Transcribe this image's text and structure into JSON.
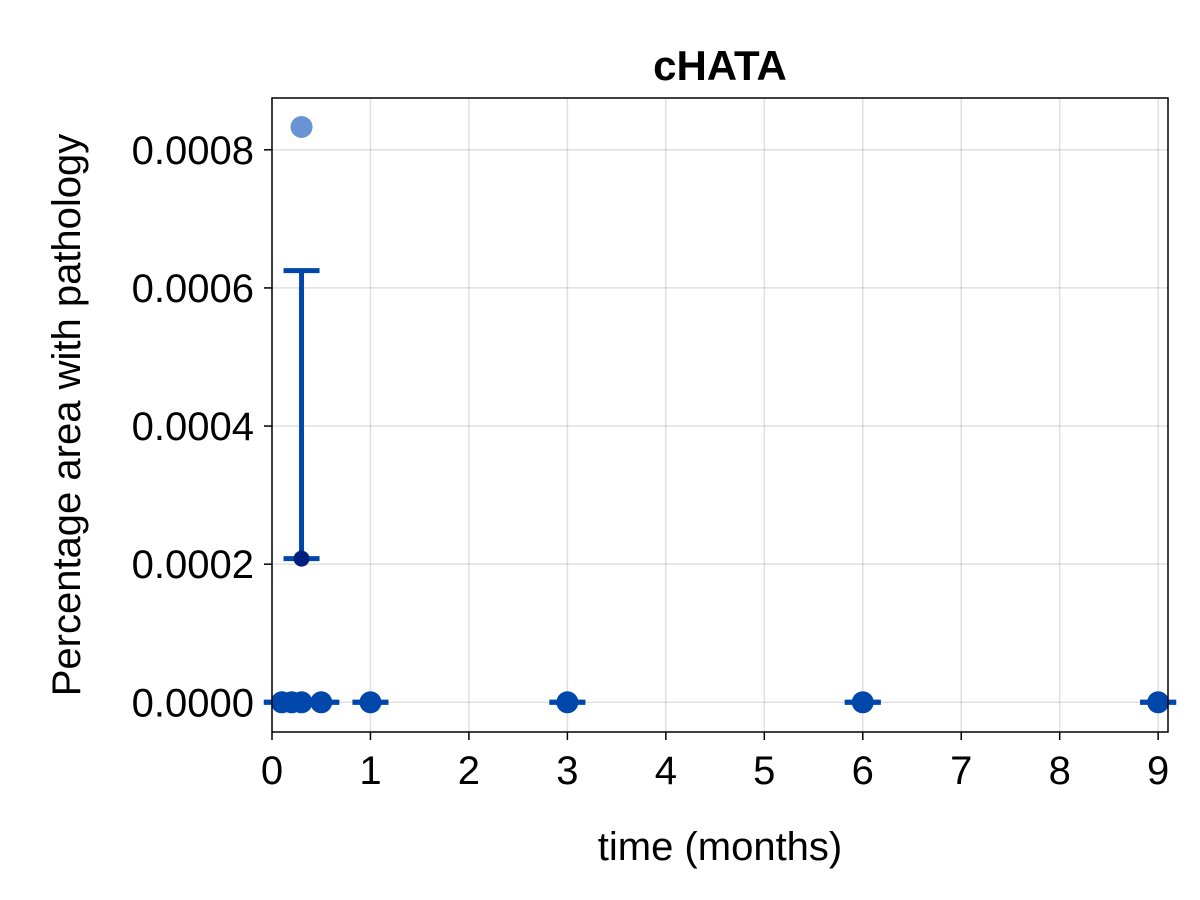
{
  "chart_data": {
    "type": "scatter",
    "title": "cHATA",
    "xlabel": "time (months)",
    "ylabel": "Percentage area with pathology",
    "xlim": [
      0,
      9.1
    ],
    "ylim": [
      -4.3e-05,
      0.000875
    ],
    "xticks": [
      0,
      1,
      2,
      3,
      4,
      5,
      6,
      7,
      8,
      9
    ],
    "xtick_labels": [
      "0",
      "1",
      "2",
      "3",
      "4",
      "5",
      "6",
      "7",
      "8",
      "9"
    ],
    "yticks": [
      0,
      0.0002,
      0.0004,
      0.0006,
      0.0008
    ],
    "ytick_labels": [
      "0.0000",
      "0.0002",
      "0.0004",
      "0.0006",
      "0.0008"
    ],
    "grid": true,
    "colors": {
      "points": "#0047ab",
      "outlier": "#6a93d4",
      "error_bars": "#0047ab",
      "mean_point": "#002080"
    },
    "points": [
      {
        "x": 0.1,
        "y": 0
      },
      {
        "x": 0.2,
        "y": 0
      },
      {
        "x": 0.3,
        "y": 0
      },
      {
        "x": 0.5,
        "y": 0
      },
      {
        "x": 1,
        "y": 0
      },
      {
        "x": 3,
        "y": 0
      },
      {
        "x": 6,
        "y": 0
      },
      {
        "x": 9,
        "y": 0
      }
    ],
    "outlier_points": [
      {
        "x": 0.3,
        "y": 0.000833
      }
    ],
    "error_bars": [
      {
        "x": 0.1,
        "mean": 0,
        "low": 0,
        "high": 0
      },
      {
        "x": 0.2,
        "mean": 0,
        "low": 0,
        "high": 0
      },
      {
        "x": 0.3,
        "mean": 0.000208,
        "low": 0.000208,
        "high": 0.000625
      },
      {
        "x": 0.5,
        "mean": 0,
        "low": 0,
        "high": 0
      },
      {
        "x": 1,
        "mean": 0,
        "low": 0,
        "high": 0
      },
      {
        "x": 3,
        "mean": 0,
        "low": 0,
        "high": 0
      },
      {
        "x": 6,
        "mean": 0,
        "low": 0,
        "high": 0
      },
      {
        "x": 9,
        "mean": 0,
        "low": 0,
        "high": 0
      }
    ]
  }
}
